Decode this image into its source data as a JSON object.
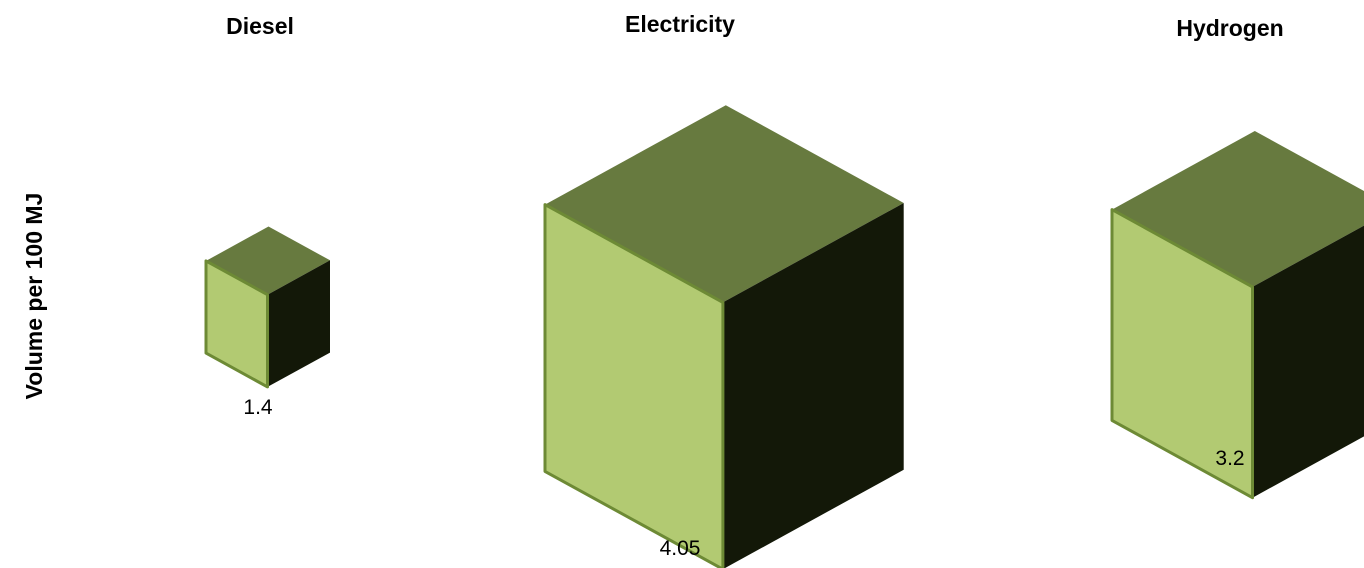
{
  "chart_data": {
    "type": "bar",
    "ylabel": "Volume per 100 MJ",
    "categories": [
      "Diesel",
      "Electricity",
      "Hydrogen"
    ],
    "values": [
      1.4,
      4.05,
      3.2
    ],
    "value_labels": [
      "1.4",
      "4.05",
      "3.2"
    ],
    "colors": {
      "front": "#b2ca72",
      "top": "#677a3f",
      "side": "#131808",
      "edge": "#6d8a35"
    }
  }
}
